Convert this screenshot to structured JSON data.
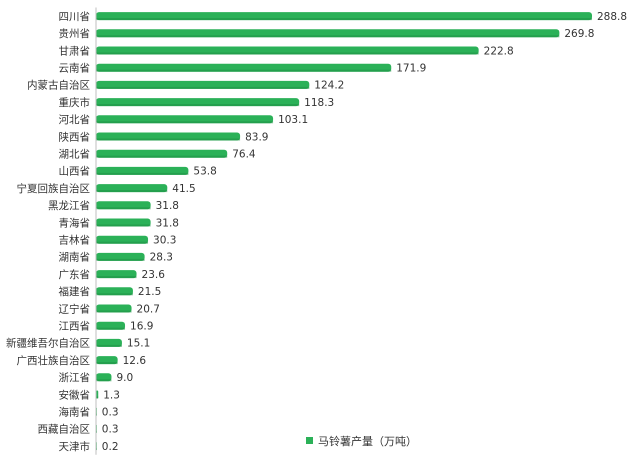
{
  "chart_data": {
    "type": "bar",
    "orientation": "horizontal",
    "categories": [
      "四川省",
      "贵州省",
      "甘肃省",
      "云南省",
      "内蒙古自治区",
      "重庆市",
      "河北省",
      "陕西省",
      "湖北省",
      "山西省",
      "宁夏回族自治区",
      "黑龙江省",
      "青海省",
      "吉林省",
      "湖南省",
      "广东省",
      "福建省",
      "辽宁省",
      "江西省",
      "新疆维吾尔自治区",
      "广西壮族自治区",
      "浙江省",
      "安徽省",
      "海南省",
      "西藏自治区",
      "天津市"
    ],
    "series": [
      {
        "name": "马铃薯产量（万吨）",
        "values": [
          288.8,
          269.8,
          222.8,
          171.9,
          124.2,
          118.3,
          103.1,
          83.9,
          76.4,
          53.8,
          41.5,
          31.8,
          31.8,
          30.3,
          28.3,
          23.6,
          21.5,
          20.7,
          16.9,
          15.1,
          12.6,
          9.0,
          1.3,
          0.3,
          0.3,
          0.2
        ],
        "value_labels": [
          "288.8",
          "269.8",
          "222.8",
          "171.9",
          "124.2",
          "118.3",
          "103.1",
          "83.9",
          "76.4",
          "53.8",
          "41.5",
          "31.8",
          "31.8",
          "30.3",
          "28.3",
          "23.6",
          "21.5",
          "20.7",
          "16.9",
          "15.1",
          "12.6",
          "9.0",
          "1.3",
          "0.3",
          "0.3",
          "0.2"
        ]
      }
    ],
    "xlim": [
      0,
      300
    ],
    "grid": false,
    "legend_position": "bottom-right",
    "colors": {
      "bar": "#2bb158",
      "bar_dark": "#1f8f45",
      "axis": "#bfbfbf",
      "text": "#333333"
    }
  }
}
